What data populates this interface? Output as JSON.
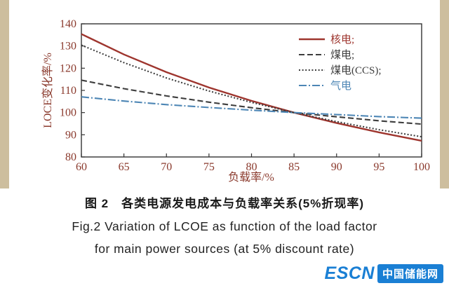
{
  "caption": {
    "zh": "图 2　各类电源发电成本与负载率关系(5%折现率)",
    "en_line1": "Fig.2  Variation of LCOE as function of the load factor",
    "en_line2": "for main power sources (at 5% discount rate)"
  },
  "logo": {
    "text_en": "ESCN",
    "text_cn": "中国储能网",
    "brand_color": "#1a7fd4"
  },
  "colors": {
    "nuclear_line": "#9e352e",
    "coal_line": "#3d3d3d",
    "coal_ccs_line": "#3d3d3d",
    "gas_line": "#4d86b5",
    "axis_text": "#8a392c",
    "page_margin": "#cdbe9e"
  },
  "chart_data": {
    "type": "line",
    "title": "",
    "xlabel": "负载率/%",
    "ylabel": "LOCE变化率/%",
    "xlim": [
      60,
      100
    ],
    "ylim": [
      80,
      140
    ],
    "xticks": [
      60,
      65,
      70,
      75,
      80,
      85,
      90,
      95,
      100
    ],
    "yticks": [
      80,
      90,
      100,
      110,
      120,
      130,
      140
    ],
    "grid": false,
    "legend_position": "upper right",
    "x": [
      60,
      65,
      70,
      75,
      80,
      85,
      90,
      95,
      100
    ],
    "series": [
      {
        "name": "核电;",
        "style": "solid",
        "color": "#9e352e",
        "values": [
          135.4,
          126.2,
          118.2,
          111.3,
          105.3,
          100.0,
          95.3,
          91.1,
          87.3
        ]
      },
      {
        "name": "煤电;",
        "style": "dashed",
        "color": "#3d3d3d",
        "values": [
          114.6,
          110.8,
          107.5,
          104.7,
          102.2,
          100.0,
          98.1,
          96.3,
          94.8
        ]
      },
      {
        "name": "煤电(CCS);",
        "style": "dotted",
        "color": "#3d3d3d",
        "values": [
          130.4,
          122.5,
          115.6,
          109.7,
          104.6,
          100.0,
          95.9,
          92.3,
          89.1
        ]
      },
      {
        "name": "气电",
        "style": "dashdot",
        "color": "#4d86b5",
        "values": [
          107.1,
          105.2,
          103.6,
          102.3,
          101.1,
          100.0,
          99.1,
          98.2,
          97.5
        ]
      }
    ]
  }
}
